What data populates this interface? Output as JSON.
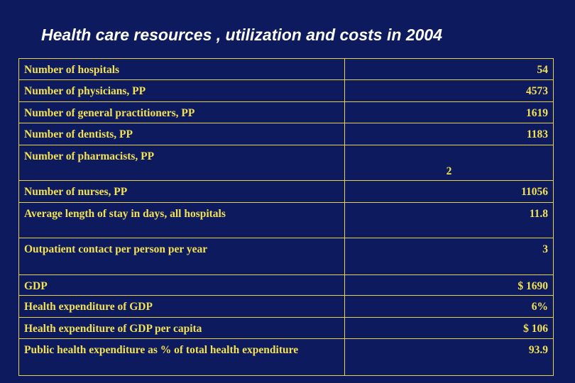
{
  "title": "Health care resources , utilization and costs in 2004",
  "rows": [
    {
      "label": "Number of hospitals",
      "value": "54"
    },
    {
      "label": "Number of physicians, PP",
      "value": "4573"
    },
    {
      "label": "Number of general practitioners, PP",
      "value": "1619"
    },
    {
      "label": "Number of  dentists, PP",
      "value": "1183"
    },
    {
      "label": "Number of pharmacists, PP",
      "value": "2"
    },
    {
      "label": "Number of nurses, PP",
      "value": "11056"
    },
    {
      "label": "Average length of stay in days, all hospitals",
      "value": "11.8"
    },
    {
      "label": "Outpatient contact per person per year",
      "value": "3"
    },
    {
      "label": "GDP",
      "value": "$ 1690"
    },
    {
      "label": "Health expenditure of GDP",
      "value": "6%"
    },
    {
      "label": "Health expenditure of GDP per capita",
      "value": "$ 106"
    },
    {
      "label": "Public health expenditure as % of total health expenditure",
      "value": "93.9"
    }
  ],
  "colors": {
    "background": "#0d1b5e",
    "text": "#f2e155",
    "title": "#ffffff",
    "border": "#e8d24a"
  }
}
